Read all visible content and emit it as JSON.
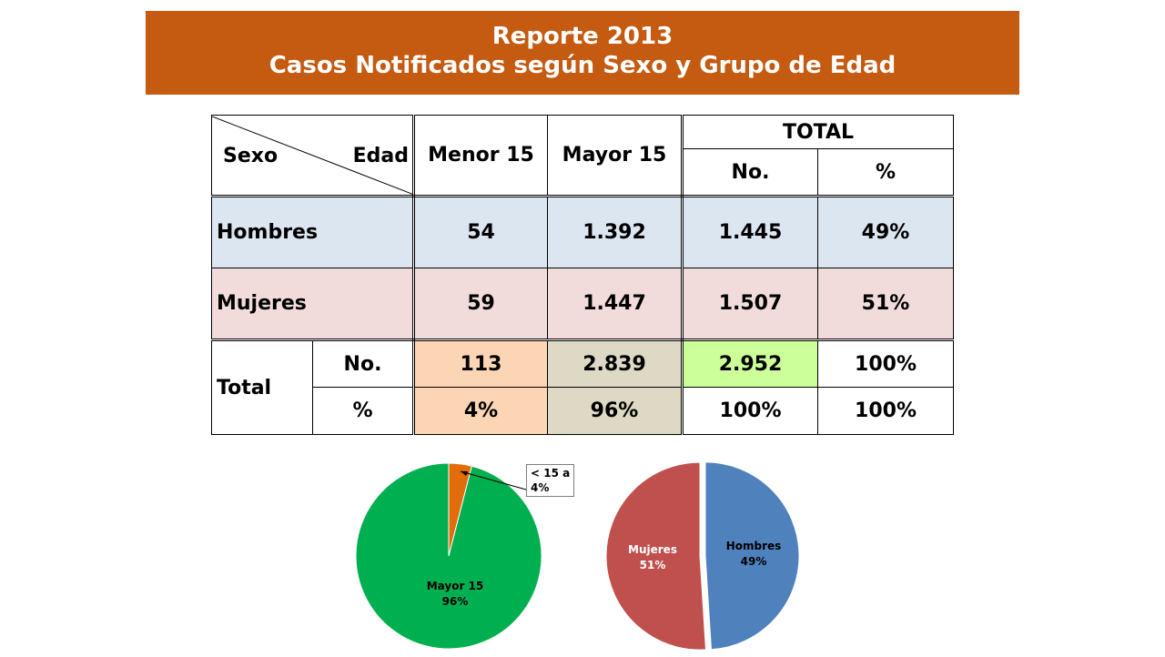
{
  "banner": {
    "title_line1": "Reporte 2013",
    "title_line2": "Casos Notificados según Sexo y Grupo de Edad"
  },
  "table": {
    "corner_row_label": "Sexo",
    "corner_col_label": "Edad",
    "col_menor": "Menor 15",
    "col_mayor": "Mayor 15",
    "col_total": "TOTAL",
    "col_total_no": "No.",
    "col_total_pct": "%",
    "rows": [
      {
        "label": "Hombres",
        "menor": "54",
        "mayor": "1.392",
        "total_no": "1.445",
        "total_pct": "49%"
      },
      {
        "label": "Mujeres",
        "menor": "59",
        "mayor": "1.447",
        "total_no": "1.507",
        "total_pct": "51%"
      }
    ],
    "total_label": "Total",
    "total_no_label": "No.",
    "total_pct_label": "%",
    "total_no_row": {
      "menor": "113",
      "mayor": "2.839",
      "total_no": "2.952",
      "total_pct": "100%"
    },
    "total_pct_row": {
      "menor": "4%",
      "mayor": "96%",
      "total_no": "100%",
      "total_pct": "100%"
    }
  },
  "chart_data": [
    {
      "type": "pie",
      "slices": [
        {
          "label": "< 15 a",
          "value": 4,
          "value_label": "4%",
          "color": "#e36c0a"
        },
        {
          "label": "Mayor 15",
          "value": 96,
          "value_label": "96%",
          "color": "#00b050"
        }
      ]
    },
    {
      "type": "pie",
      "slices": [
        {
          "label": "Hombres",
          "value": 49,
          "value_label": "49%",
          "color": "#4f81bd"
        },
        {
          "label": "Mujeres",
          "value": 51,
          "value_label": "51%",
          "color": "#c0504d"
        }
      ]
    }
  ]
}
